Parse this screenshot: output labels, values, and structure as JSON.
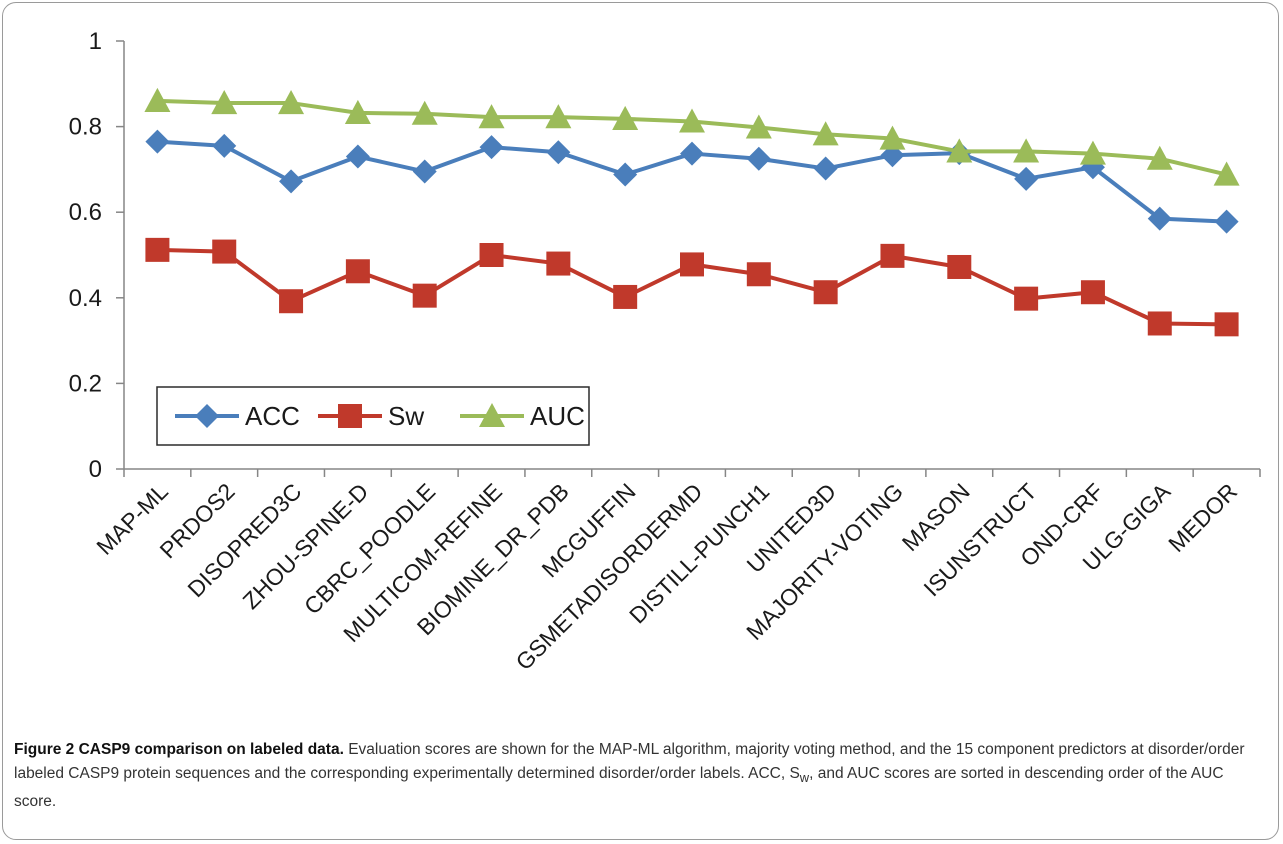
{
  "chart_data": {
    "type": "line",
    "categories": [
      "MAP-ML",
      "PRDOS2",
      "DISOPRED3C",
      "ZHOU-SPINE-D",
      "CBRC_POODLE",
      "MULTICOM-REFINE",
      "BIOMINE_DR_PDB",
      "MCGUFFIN",
      "GSMETADISORDERMD",
      "DISTILL-PUNCH1",
      "UNITED3D",
      "MAJORITY-VOTING",
      "MASON",
      "ISUNSTRUCT",
      "OND-CRF",
      "ULG-GIGA",
      "MEDOR"
    ],
    "series": [
      {
        "name": "ACC",
        "color": "#4a7ebb",
        "marker": "diamond",
        "values": [
          0.765,
          0.755,
          0.672,
          0.73,
          0.695,
          0.752,
          0.74,
          0.688,
          0.737,
          0.725,
          0.702,
          0.733,
          0.738,
          0.678,
          0.705,
          0.585,
          0.578
        ]
      },
      {
        "name": "Sw",
        "color": "#c0392b",
        "marker": "square",
        "values": [
          0.512,
          0.508,
          0.392,
          0.462,
          0.405,
          0.5,
          0.48,
          0.402,
          0.478,
          0.455,
          0.413,
          0.498,
          0.472,
          0.398,
          0.413,
          0.34,
          0.338
        ]
      },
      {
        "name": "AUC",
        "color": "#9bbb59",
        "marker": "triangle",
        "values": [
          0.86,
          0.855,
          0.855,
          0.832,
          0.83,
          0.822,
          0.822,
          0.818,
          0.812,
          0.798,
          0.782,
          0.772,
          0.742,
          0.742,
          0.737,
          0.725,
          0.688
        ]
      }
    ],
    "yticks": [
      "0",
      "0.2",
      "0.4",
      "0.6",
      "0.8",
      "1"
    ],
    "ylim": [
      0,
      1
    ],
    "xlabel": "",
    "ylabel": "",
    "grid": false,
    "legend": "bottom-left, inside plot, boxed"
  },
  "caption": {
    "title": "Figure 2 CASP9 comparison on labeled data.",
    "text_before_sub": " Evaluation scores are shown for the MAP-ML algorithm, majority voting method, and the 15 component predictors at disorder/order labeled CASP9 protein sequences and the corresponding experimentally determined disorder/order labels. ACC, S",
    "subscript": "w",
    "text_after_sub": ", and AUC scores are sorted in descending order of the AUC score."
  }
}
